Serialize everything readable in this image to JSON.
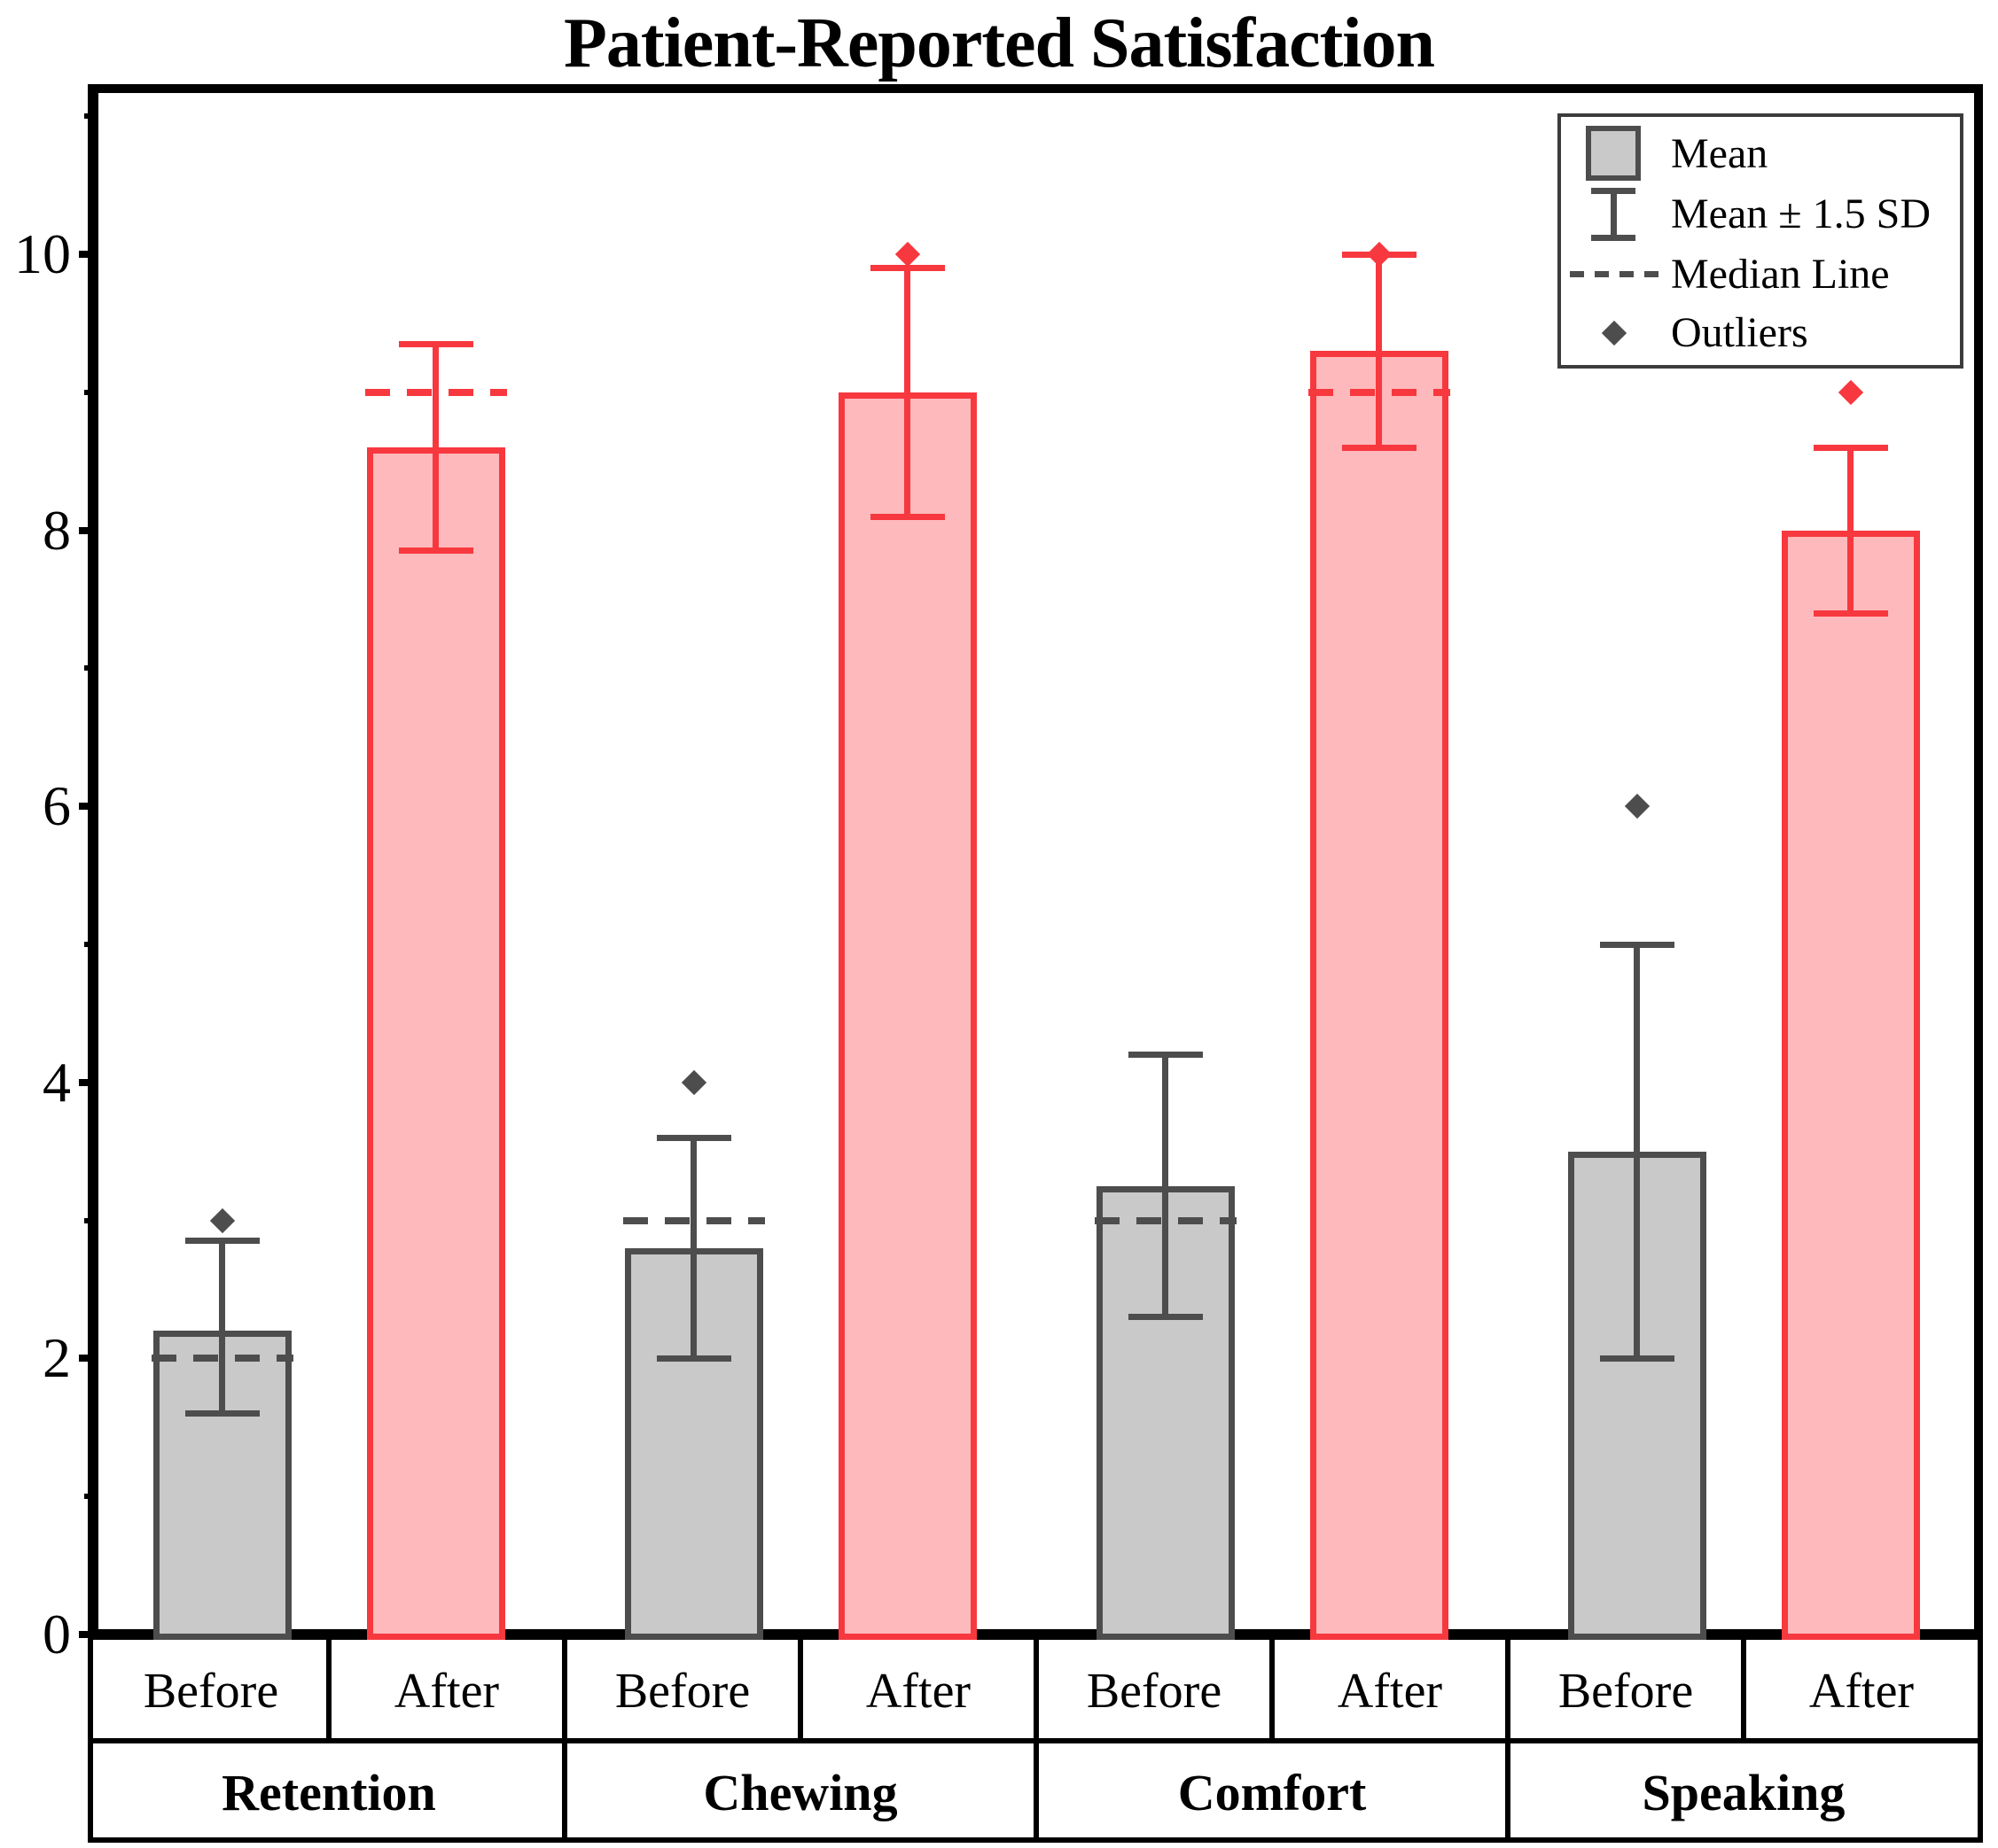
{
  "title": "Patient-Reported Satisfaction",
  "y_axis": {
    "major_ticks": [
      0,
      2,
      4,
      6,
      8,
      10
    ],
    "major_tick_labels": [
      "0",
      "2",
      "4",
      "6",
      "8",
      "10"
    ],
    "minor_ticks": [
      1,
      3,
      5,
      7,
      9,
      11
    ]
  },
  "legend": {
    "items": [
      {
        "icon": "mean-swatch",
        "label": "Mean"
      },
      {
        "icon": "error-bar",
        "label": "Mean ± 1.5 SD"
      },
      {
        "icon": "median-line",
        "label": "Median Line"
      },
      {
        "icon": "outlier-diamond",
        "label": "Outliers"
      }
    ]
  },
  "colors": {
    "before_fill": "#C9C9C9",
    "before_stroke": "#4D4D4D",
    "after_fill": "#FEB9BC",
    "after_stroke": "#F7383E",
    "axis": "#000000",
    "legend_glyph_gray": "#4D4D4D"
  },
  "chart_data": {
    "type": "bar",
    "title": "Patient-Reported Satisfaction",
    "categories": [
      "Retention",
      "Chewing",
      "Comfort",
      "Speaking"
    ],
    "sub_categories": [
      "Before",
      "After"
    ],
    "ylim": [
      0,
      11.2
    ],
    "grid": false,
    "legend_position": "top-right",
    "error_bar_definition": "Mean ± 1.5 SD",
    "series": [
      {
        "name": "Before",
        "means": [
          2.2,
          2.8,
          3.25,
          3.5
        ],
        "error_low": [
          1.6,
          2.0,
          2.3,
          2.0
        ],
        "error_high": [
          2.85,
          3.6,
          4.2,
          5.0
        ],
        "medians": [
          2.0,
          3.0,
          3.0,
          null
        ],
        "outliers": [
          3.0,
          4.0,
          null,
          6.0
        ]
      },
      {
        "name": "After",
        "means": [
          8.6,
          9.0,
          9.3,
          8.0
        ],
        "error_low": [
          7.85,
          8.1,
          8.6,
          7.4
        ],
        "error_high": [
          9.35,
          9.9,
          10.0,
          8.6
        ],
        "medians": [
          9.0,
          null,
          9.0,
          null
        ],
        "outliers": [
          null,
          10.0,
          10.0,
          9.0
        ]
      }
    ]
  }
}
